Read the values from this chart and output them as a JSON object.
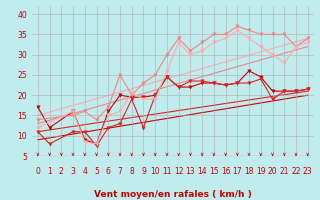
{
  "title": "",
  "xlabel": "Vent moyen/en rafales ( km/h )",
  "bg_color": "#c0ecee",
  "grid_color": "#b0b0b0",
  "xlim": [
    -0.5,
    23.5
  ],
  "ylim": [
    5,
    42
  ],
  "yticks": [
    5,
    10,
    15,
    20,
    25,
    30,
    35,
    40
  ],
  "xticks": [
    0,
    1,
    2,
    3,
    4,
    5,
    6,
    7,
    8,
    9,
    10,
    11,
    12,
    13,
    14,
    15,
    16,
    17,
    18,
    19,
    20,
    21,
    22,
    23
  ],
  "series_lines": [
    {
      "x": [
        0,
        23
      ],
      "y": [
        9,
        20
      ],
      "color": "#cc0000",
      "lw": 0.8
    },
    {
      "x": [
        0,
        23
      ],
      "y": [
        11,
        21
      ],
      "color": "#dd2222",
      "lw": 0.8
    },
    {
      "x": [
        0,
        23
      ],
      "y": [
        13,
        32
      ],
      "color": "#ee8888",
      "lw": 0.8
    },
    {
      "x": [
        0,
        23
      ],
      "y": [
        15,
        34
      ],
      "color": "#ffaaaa",
      "lw": 0.8
    }
  ],
  "series_marked": [
    {
      "x": [
        0,
        1,
        3,
        4,
        5,
        6,
        7,
        8,
        9,
        10,
        11,
        12,
        13,
        14,
        15,
        16,
        17,
        18,
        19,
        20,
        21,
        22,
        23
      ],
      "y": [
        17,
        12,
        16,
        9,
        8,
        16,
        20,
        19.5,
        19.5,
        20,
        24.5,
        22,
        22,
        23,
        23,
        22.5,
        23,
        26,
        24.5,
        21,
        21,
        21,
        21.5
      ],
      "color": "#cc0000",
      "lw": 0.8,
      "marker": "v",
      "ms": 2.5
    },
    {
      "x": [
        0,
        1,
        3,
        4,
        5,
        6,
        7,
        8,
        9,
        10,
        11,
        12,
        13,
        14,
        15,
        16,
        17,
        18,
        19,
        20,
        21,
        22,
        23
      ],
      "y": [
        11,
        8,
        11,
        11,
        7.5,
        12,
        13,
        19,
        12,
        20,
        24.5,
        22,
        23.5,
        23.5,
        23,
        22.5,
        23,
        23,
        24,
        19,
        21,
        21,
        21.5
      ],
      "color": "#dd2222",
      "lw": 0.8,
      "marker": "v",
      "ms": 2.5
    },
    {
      "x": [
        0,
        3,
        4,
        5,
        6,
        7,
        8,
        9,
        10,
        11,
        12,
        13,
        14,
        15,
        16,
        17,
        18,
        19,
        20,
        21,
        22,
        23
      ],
      "y": [
        14,
        15,
        16,
        14,
        17,
        25,
        20,
        23,
        25,
        30,
        34,
        31,
        33,
        35,
        35,
        37,
        36,
        35,
        35,
        35,
        32,
        34
      ],
      "color": "#ee8888",
      "lw": 0.8,
      "marker": "v",
      "ms": 2.5
    },
    {
      "x": [
        0,
        3,
        4,
        5,
        6,
        7,
        8,
        9,
        10,
        11,
        12,
        13,
        14,
        15,
        16,
        17,
        18,
        19,
        20,
        21,
        22,
        23
      ],
      "y": [
        12,
        16,
        8.5,
        8,
        15,
        16,
        20.5,
        19,
        19,
        26,
        33,
        30,
        31,
        33,
        34,
        36,
        34,
        32,
        30,
        28,
        32,
        33
      ],
      "color": "#ffaaaa",
      "lw": 0.8,
      "marker": "v",
      "ms": 2.5
    }
  ],
  "xlabel_color": "#cc0000",
  "tick_color": "#cc0000",
  "tick_fontsize": 5.5,
  "label_fontsize": 6.5
}
